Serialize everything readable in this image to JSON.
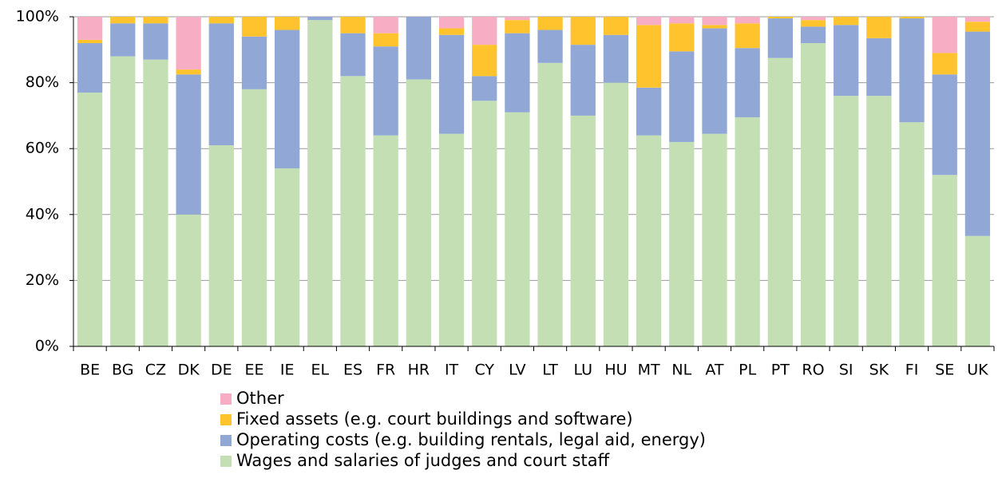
{
  "chart_data": {
    "type": "stacked_bar",
    "categories": [
      "BE",
      "BG",
      "CZ",
      "DK",
      "DE",
      "EE",
      "IE",
      "EL",
      "ES",
      "FR",
      "HR",
      "IT",
      "CY",
      "LV",
      "LT",
      "LU",
      "HU",
      "MT",
      "NL",
      "AT",
      "PL",
      "PT",
      "RO",
      "SI",
      "SK",
      "FI",
      "SE",
      "UK"
    ],
    "series": [
      {
        "name": "Wages and salaries of judges and court staff",
        "color": "#c4dfb4",
        "values": [
          77,
          88,
          87,
          40,
          61,
          78,
          54,
          99,
          82,
          64,
          81,
          64.5,
          74.5,
          71,
          86,
          70,
          80,
          64,
          62,
          64.5,
          69.5,
          87.5,
          92,
          76,
          76,
          68,
          52,
          33.5
        ]
      },
      {
        "name": "Operating costs (e.g. building rentals, legal aid, energy)",
        "color": "#91a8d6",
        "values": [
          15,
          10,
          11,
          42.5,
          37,
          16,
          42,
          1,
          13,
          27,
          19,
          30,
          7.5,
          24,
          10,
          21.5,
          14.5,
          14.5,
          27.5,
          32,
          21,
          12,
          5,
          21.5,
          17.5,
          31.5,
          30.5,
          62
        ]
      },
      {
        "name": "Fixed assets (e.g. court buildings and software)",
        "color": "#ffc32e",
        "values": [
          1,
          2,
          2,
          1.5,
          2,
          6,
          4,
          0,
          5,
          4,
          0,
          2,
          9.5,
          4,
          4,
          8.5,
          5.5,
          19,
          8.5,
          1,
          7.5,
          0.5,
          2,
          2.5,
          6.5,
          0.5,
          6.5,
          3
        ]
      },
      {
        "name": "Other",
        "color": "#f7aec4",
        "values": [
          7,
          0,
          0,
          16,
          0,
          0,
          0,
          0,
          0,
          5,
          0,
          3.5,
          8.5,
          1,
          0,
          0,
          0,
          2.5,
          2,
          2.5,
          2,
          0,
          1,
          0,
          0,
          0,
          11,
          1.5
        ]
      }
    ],
    "ylim": [
      0,
      100
    ],
    "yticks": [
      {
        "value": 0,
        "label": "0%"
      },
      {
        "value": 20,
        "label": "20%"
      },
      {
        "value": 40,
        "label": "40%"
      },
      {
        "value": 60,
        "label": "60%"
      },
      {
        "value": 80,
        "label": "80%"
      },
      {
        "value": 100,
        "label": "100%"
      }
    ],
    "grid": true
  }
}
